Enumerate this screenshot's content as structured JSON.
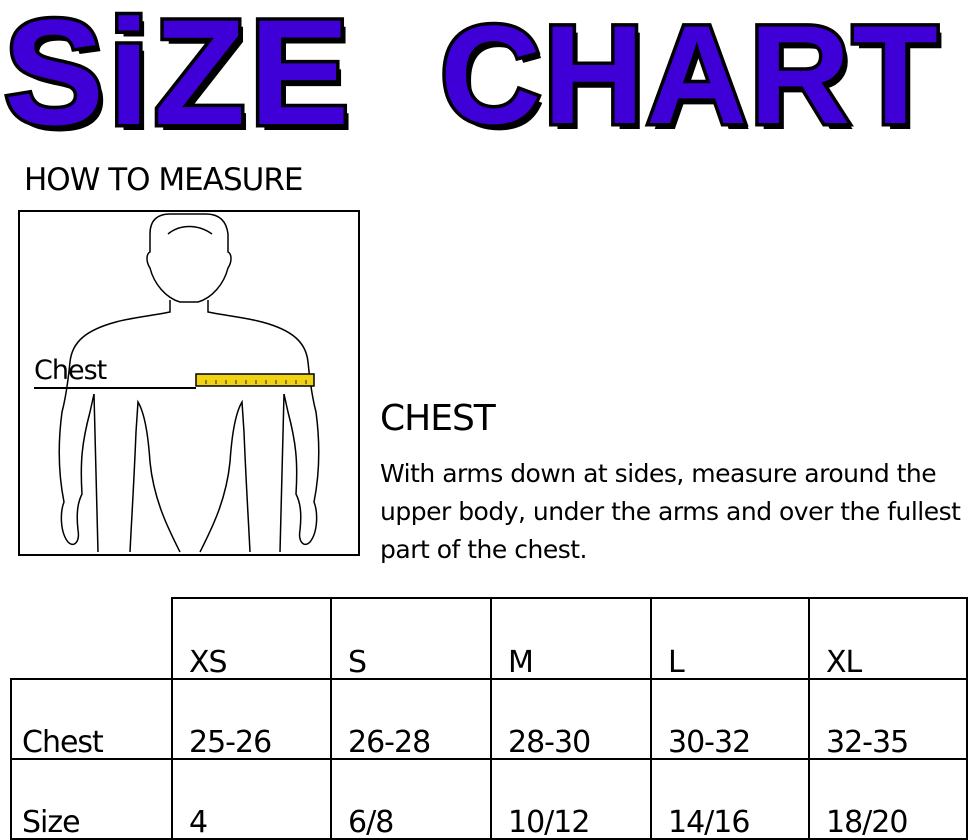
{
  "title": {
    "word1": "SiZE",
    "word2": "CHART",
    "color": "#3f00d8"
  },
  "how_to_measure": "HOW TO MEASURE",
  "figure": {
    "label": "Chest",
    "tape_color": "#f2d214"
  },
  "chest": {
    "heading": "CHEST",
    "description": "With arms down at sides, measure around the upper body, under the arms and over the fullest part of the chest."
  },
  "table": {
    "sizes": [
      "XS",
      "S",
      "M",
      "L",
      "XL"
    ],
    "rows": [
      {
        "label": "Chest",
        "values": [
          "25-26",
          "26-28",
          "28-30",
          "30-32",
          "32-35"
        ]
      },
      {
        "label": "Size",
        "values": [
          "4",
          "6/8",
          "10/12",
          "14/16",
          "18/20"
        ]
      }
    ]
  }
}
